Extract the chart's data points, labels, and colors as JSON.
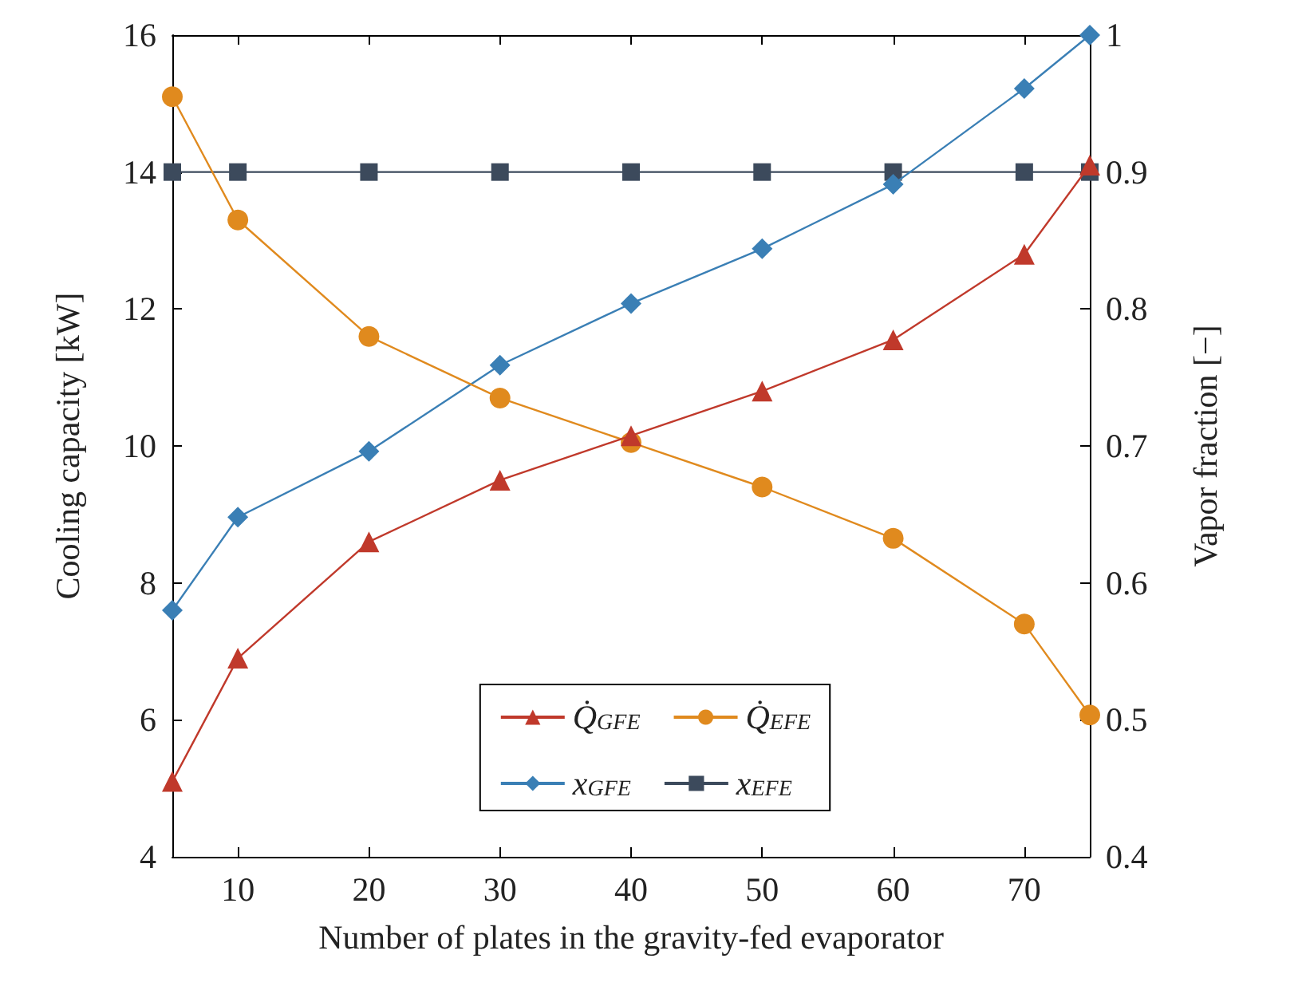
{
  "chart_data": {
    "type": "line",
    "xlabel": "Number of plates in the gravity-fed evaporator",
    "ylabel": "Cooling capacity [kW]",
    "y2label": "Vapor fraction [−]",
    "x": [
      5,
      10,
      20,
      30,
      40,
      50,
      60,
      70,
      75
    ],
    "xlim": [
      5,
      75
    ],
    "xticks": [
      10,
      20,
      30,
      40,
      50,
      60,
      70
    ],
    "ylim": [
      4,
      16
    ],
    "yticks": [
      4,
      6,
      8,
      10,
      12,
      14,
      16
    ],
    "y2lim": [
      0.4,
      1
    ],
    "y2ticks": [
      0.4,
      0.5,
      0.6,
      0.7,
      0.8,
      0.9,
      1
    ],
    "grid": false,
    "legend": "bottom",
    "series": [
      {
        "name": "Q̇$_{GFE}$",
        "color": "#c0392b",
        "marker": "triangle",
        "values": [
          5.1,
          6.9,
          8.6,
          9.5,
          10.15,
          10.8,
          11.55,
          12.8,
          14.1
        ]
      },
      {
        "name": "Q̇$_{EFE}$",
        "color": "#e08a1e",
        "marker": "circle",
        "values": [
          15.1,
          13.3,
          11.6,
          10.7,
          10.05,
          9.4,
          8.65,
          7.4,
          6.07
        ]
      },
      {
        "name": "x$_{GFE}$",
        "color": "#3a7fb5",
        "marker": "diamond",
        "axis": "y2",
        "values": [
          0.58,
          0.648,
          0.696,
          0.759,
          0.804,
          0.844,
          0.891,
          0.961,
          1.0
        ]
      },
      {
        "name": "x$_{EFE}$",
        "color": "#3c4a5c",
        "marker": "square",
        "axis": "y2",
        "values": [
          0.9,
          0.9,
          0.9,
          0.9,
          0.9,
          0.9,
          0.9,
          0.9,
          0.9
        ]
      }
    ]
  }
}
